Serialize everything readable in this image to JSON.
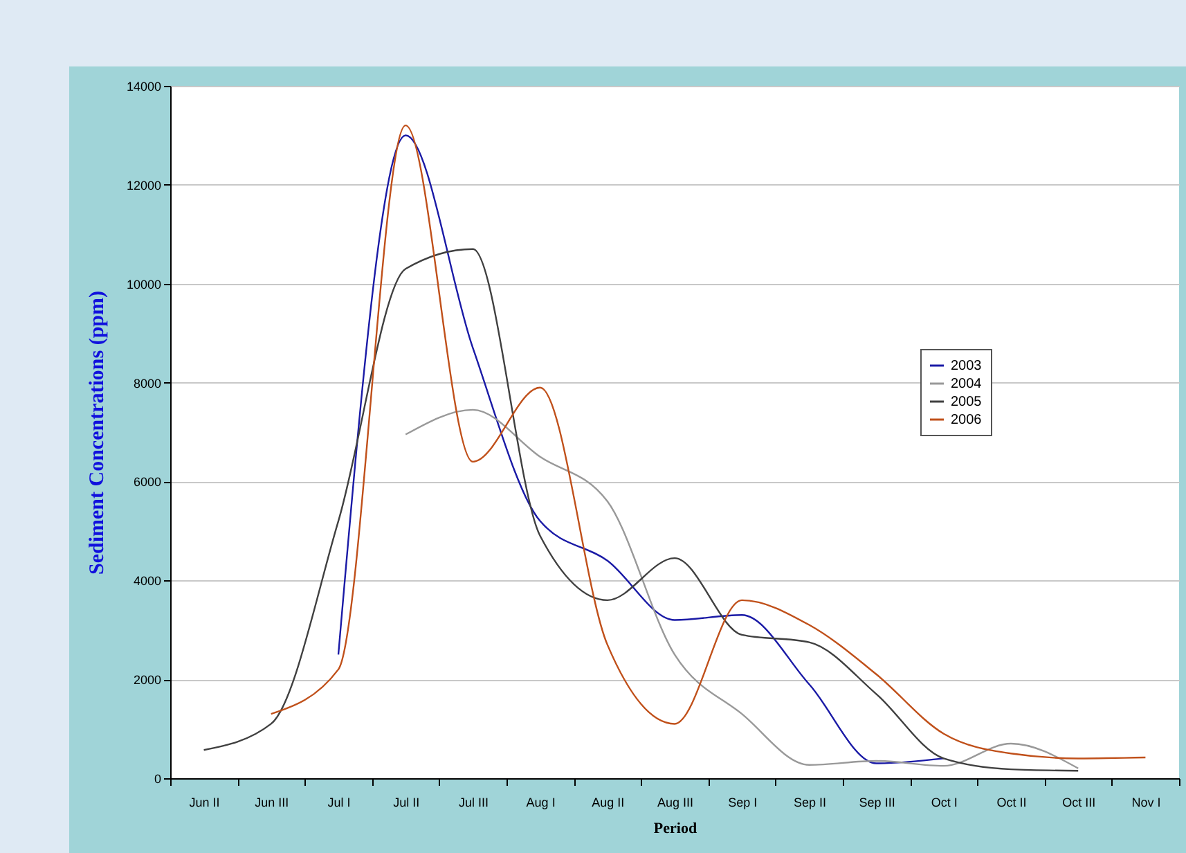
{
  "chart_data": {
    "type": "line",
    "xlabel": "Period",
    "ylabel": "Sediment Concentrations (ppm)",
    "categories": [
      "Jun II",
      "Jun III",
      "Jul I",
      "Jul II",
      "Jul III",
      "Aug I",
      "Aug II",
      "Aug III",
      "Sep I",
      "Sep II",
      "Sep III",
      "Oct I",
      "Oct II",
      "Oct III",
      "Nov I"
    ],
    "series": [
      {
        "name": "2003",
        "color": "#1a1aa6",
        "values": [
          null,
          null,
          2500,
          13000,
          8700,
          5200,
          4400,
          3200,
          3300,
          1900,
          300,
          400,
          null,
          null,
          null
        ]
      },
      {
        "name": "2004",
        "color": "#999999",
        "values": [
          null,
          null,
          null,
          6950,
          7450,
          6500,
          5600,
          2500,
          1300,
          270,
          350,
          250,
          700,
          200,
          null
        ]
      },
      {
        "name": "2005",
        "color": "#404040",
        "values": [
          570,
          1100,
          5200,
          10300,
          10700,
          4900,
          3600,
          4450,
          2900,
          2750,
          1700,
          400,
          180,
          150,
          null
        ]
      },
      {
        "name": "2006",
        "color": "#c0501a",
        "values": [
          null,
          1300,
          2200,
          13200,
          6400,
          7900,
          2700,
          1100,
          3600,
          3100,
          2100,
          900,
          500,
          400,
          420
        ]
      }
    ],
    "ylim": [
      0,
      14000
    ],
    "yticks": [
      0,
      2000,
      4000,
      6000,
      8000,
      10000,
      12000,
      14000
    ],
    "grid": "y",
    "legend": "right",
    "marker": "none",
    "line_style": "solid"
  }
}
